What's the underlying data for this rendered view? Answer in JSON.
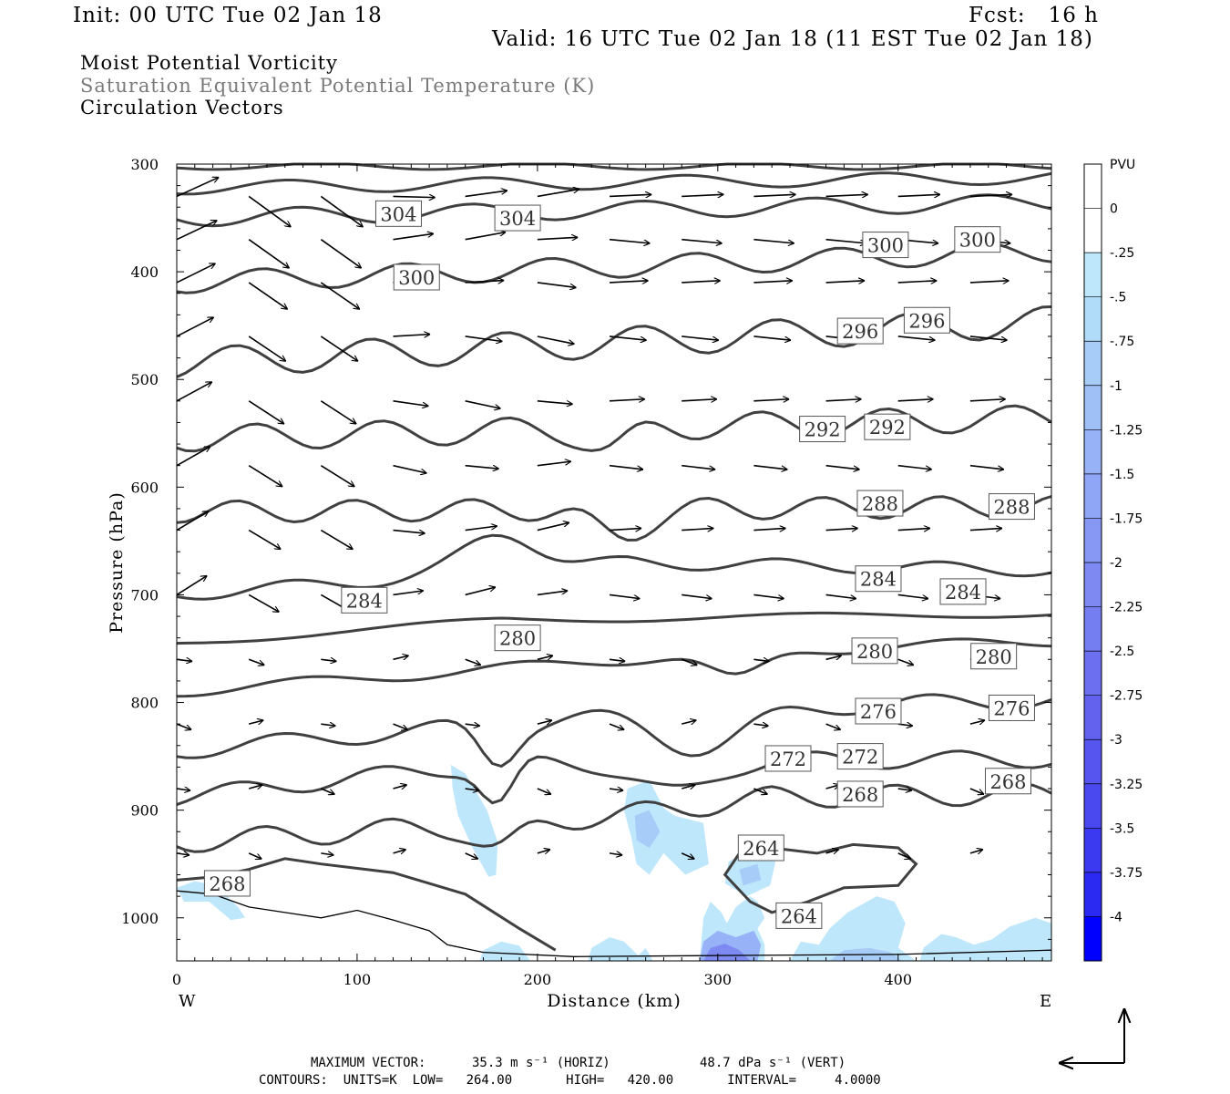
{
  "header": {
    "init": "Init: 00 UTC Tue 02 Jan 18",
    "fcst": "Fcst:   16 h",
    "valid": "Valid: 16 UTC Tue 02 Jan 18 (11 EST Tue 02 Jan 18)",
    "field1": "Moist Potential Vorticity",
    "field2": "Saturation Equivalent Potential Temperature (K)",
    "field3": "Circulation Vectors"
  },
  "chart_data": {
    "type": "contour",
    "xlabel": "Distance (km)",
    "ylabel": "Pressure (hPa)",
    "xlim": [
      0,
      485
    ],
    "ylim": [
      300,
      1040
    ],
    "y_inverted": true,
    "x_ticks": [
      0,
      100,
      200,
      300,
      400
    ],
    "y_ticks": [
      300,
      400,
      500,
      600,
      700,
      800,
      900,
      1000
    ],
    "x_tick_labels": [
      "0",
      "100",
      "200",
      "300",
      "400"
    ],
    "y_tick_labels": [
      "300",
      "400",
      "500",
      "600",
      "700",
      "800",
      "900",
      "1000"
    ],
    "left_end_label": "W",
    "right_end_label": "E",
    "colorbar": {
      "units": "PVU",
      "levels": [
        "0",
        "-.25",
        "-.5",
        "-.75",
        "-1",
        "-1.25",
        "-1.5",
        "-1.75",
        "-2",
        "-2.25",
        "-2.5",
        "-2.75",
        "-3",
        "-3.25",
        "-3.5",
        "-3.75",
        "-4"
      ],
      "colors": [
        "#ffffff",
        "#ffffff",
        "#bfe7fb",
        "#b0dcfa",
        "#a8ccf8",
        "#9fc0f7",
        "#97b2f6",
        "#8fa5f5",
        "#8698f3",
        "#7e8af2",
        "#757ef1",
        "#6c70f0",
        "#6262ef",
        "#5655ef",
        "#4a48ef",
        "#3b3af0",
        "#2a2af2",
        "#0000ff"
      ]
    },
    "contours": {
      "units": "K",
      "low": 264,
      "high": 420,
      "interval": 4,
      "line_color": "#404040",
      "labels": [
        {
          "value": "304",
          "x": 123,
          "p": 346
        },
        {
          "value": "304",
          "x": 189,
          "p": 350
        },
        {
          "value": "300",
          "x": 133,
          "p": 405
        },
        {
          "value": "300",
          "x": 393,
          "p": 375
        },
        {
          "value": "300",
          "x": 444,
          "p": 370
        },
        {
          "value": "296",
          "x": 379,
          "p": 455
        },
        {
          "value": "296",
          "x": 416,
          "p": 445
        },
        {
          "value": "292",
          "x": 358,
          "p": 546
        },
        {
          "value": "292",
          "x": 394,
          "p": 544
        },
        {
          "value": "288",
          "x": 390,
          "p": 615
        },
        {
          "value": "288",
          "x": 463,
          "p": 618
        },
        {
          "value": "284",
          "x": 104,
          "p": 705
        },
        {
          "value": "284",
          "x": 389,
          "p": 685
        },
        {
          "value": "284",
          "x": 436,
          "p": 697
        },
        {
          "value": "280",
          "x": 189,
          "p": 740
        },
        {
          "value": "280",
          "x": 387,
          "p": 752
        },
        {
          "value": "280",
          "x": 453,
          "p": 757
        },
        {
          "value": "276",
          "x": 389,
          "p": 808
        },
        {
          "value": "276",
          "x": 463,
          "p": 805
        },
        {
          "value": "272",
          "x": 339,
          "p": 852
        },
        {
          "value": "272",
          "x": 379,
          "p": 850
        },
        {
          "value": "268",
          "x": 379,
          "p": 885
        },
        {
          "value": "268",
          "x": 461,
          "p": 873
        },
        {
          "value": "268",
          "x": 28,
          "p": 968
        },
        {
          "value": "264",
          "x": 324,
          "p": 935
        },
        {
          "value": "264",
          "x": 345,
          "p": 998
        }
      ]
    },
    "footer": {
      "vector_prefix": "MAXIMUM VECTOR:",
      "horiz": "35.3 m s⁻¹ (HORIZ)",
      "vert": "48.7 dPa s⁻¹ (VERT)",
      "contours": "CONTOURS:  UNITS=K  LOW=   264.00       HIGH=   420.00       INTERVAL=     4.0000"
    }
  }
}
